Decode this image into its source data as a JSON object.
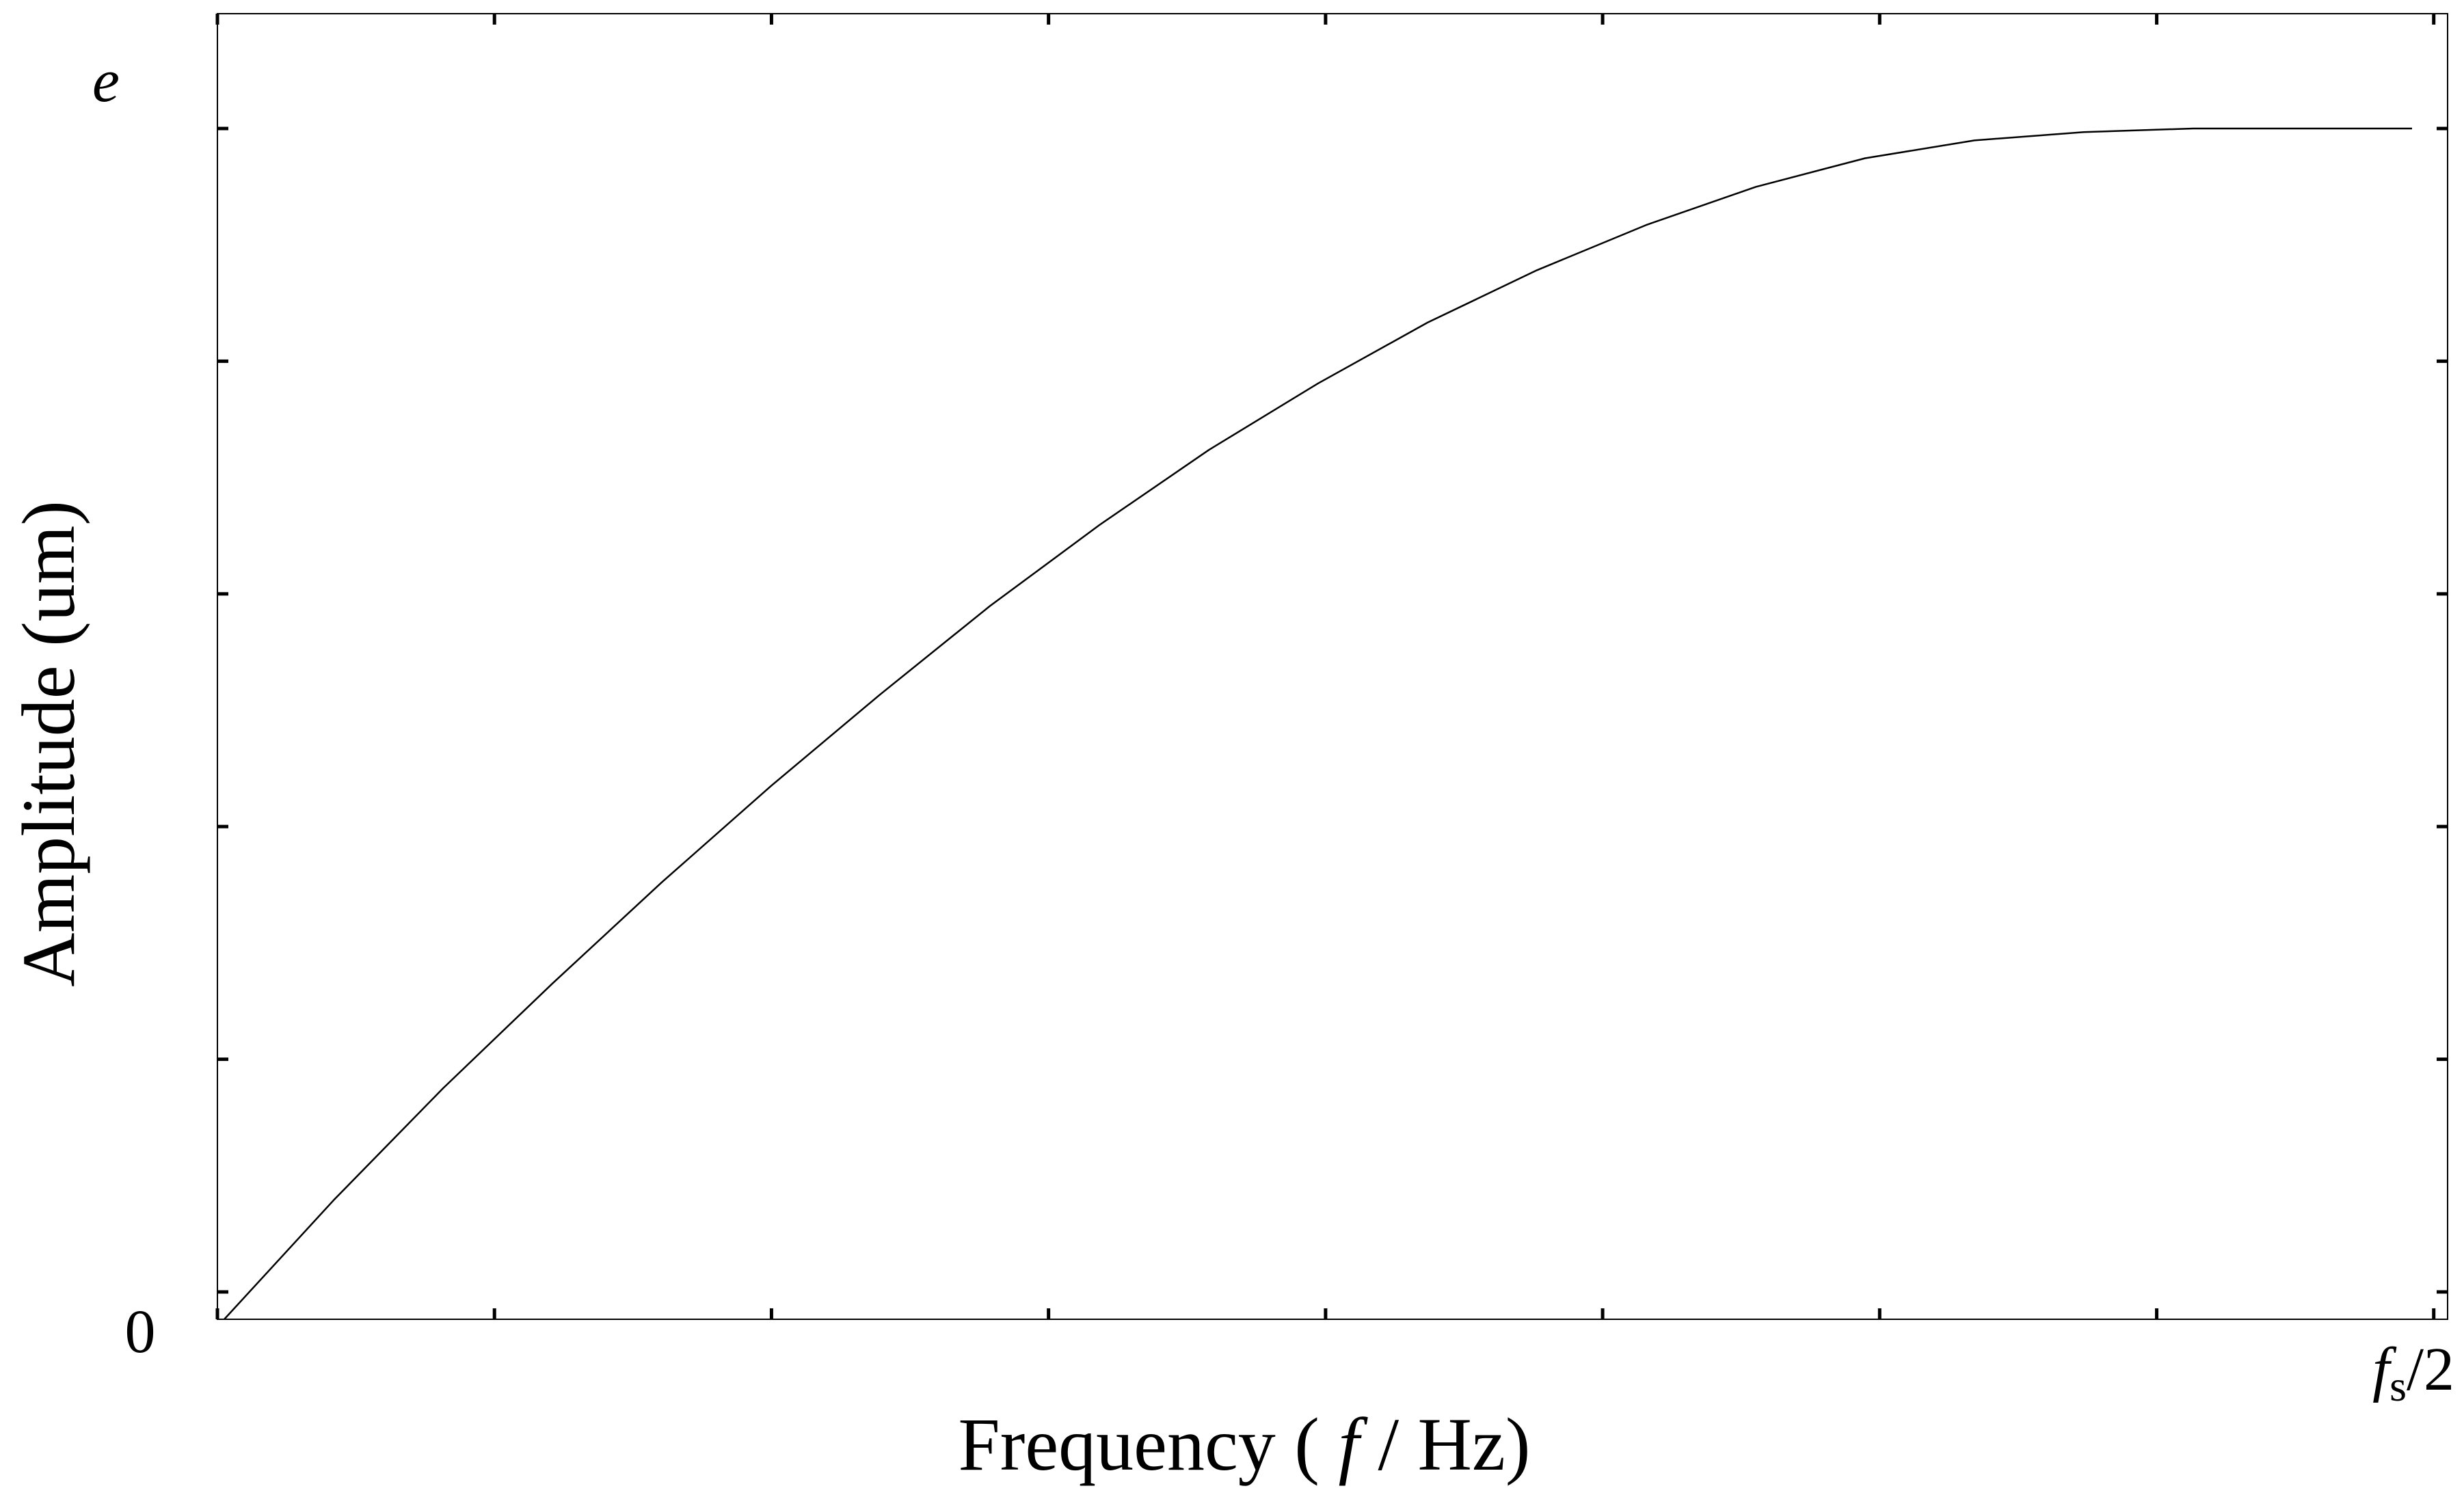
{
  "chart_data": {
    "type": "line",
    "title": "",
    "xlabel": "Frequency ( f / Hz)",
    "xlabel_parts": {
      "prefix": "Frequency ( ",
      "var": "f",
      "suffix": " / Hz)"
    },
    "ylabel": "Amplitude (um)",
    "x_tick_labels": {
      "min": "0",
      "max_base": "f",
      "max_sub": "s",
      "max_suffix": "/2"
    },
    "y_tick_labels": {
      "max": "e"
    },
    "xlim": [
      0,
      1
    ],
    "ylim": [
      0,
      1
    ],
    "grid": false,
    "legend": "none",
    "line_color": "#000000",
    "series": [
      {
        "x": [
          0.0,
          0.05,
          0.1,
          0.15,
          0.2,
          0.25,
          0.3,
          0.35,
          0.4,
          0.45,
          0.5,
          0.55,
          0.6,
          0.65,
          0.7,
          0.75,
          0.8,
          0.85,
          0.9,
          0.95,
          1.0
        ],
        "values": [
          0.0,
          0.1,
          0.194,
          0.282,
          0.367,
          0.448,
          0.525,
          0.599,
          0.667,
          0.73,
          0.786,
          0.837,
          0.881,
          0.919,
          0.951,
          0.975,
          0.99,
          0.997,
          1.0,
          1.0,
          1.0
        ]
      }
    ]
  }
}
